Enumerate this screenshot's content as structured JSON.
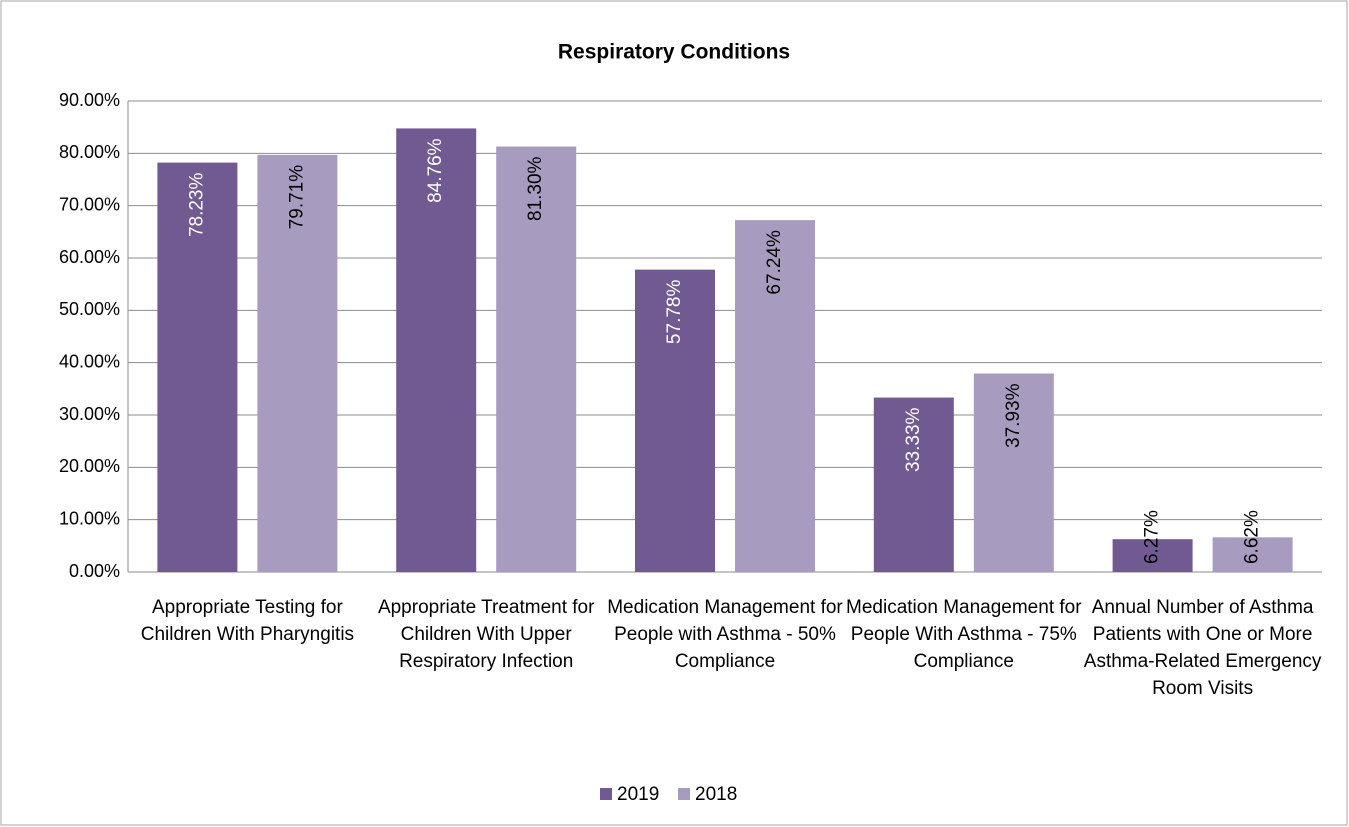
{
  "chart_data": {
    "type": "bar",
    "title": "Respiratory Conditions",
    "categories": [
      "Appropriate Testing for Children With Pharyngitis",
      "Appropriate Treatment for Children With Upper Respiratory Infection",
      "Medication Management for People with Asthma - 50% Compliance",
      "Medication Management for People With Asthma - 75% Compliance",
      "Annual Number of Asthma Patients with One or More Asthma-Related Emergency Room Visits"
    ],
    "series": [
      {
        "name": "2019",
        "color": "#715a92",
        "values": [
          78.23,
          84.76,
          57.78,
          33.33,
          6.27
        ],
        "value_labels": [
          "78.23%",
          "84.76%",
          "57.78%",
          "33.33%",
          "6.27%"
        ]
      },
      {
        "name": "2018",
        "color": "#a89bc0",
        "values": [
          79.71,
          81.3,
          67.24,
          37.93,
          6.62
        ],
        "value_labels": [
          "79.71%",
          "81.30%",
          "67.24%",
          "37.93%",
          "6.62%"
        ]
      }
    ],
    "ylim": [
      0,
      90
    ],
    "yticks": [
      {
        "value": 0,
        "label": "0.00%"
      },
      {
        "value": 10,
        "label": "10.00%"
      },
      {
        "value": 20,
        "label": "20.00%"
      },
      {
        "value": 30,
        "label": "30.00%"
      },
      {
        "value": 40,
        "label": "40.00%"
      },
      {
        "value": 50,
        "label": "50.00%"
      },
      {
        "value": 60,
        "label": "60.00%"
      },
      {
        "value": 70,
        "label": "70.00%"
      },
      {
        "value": 80,
        "label": "80.00%"
      },
      {
        "value": 90,
        "label": "90.00%"
      }
    ],
    "grid": true,
    "legend": "bottom"
  }
}
